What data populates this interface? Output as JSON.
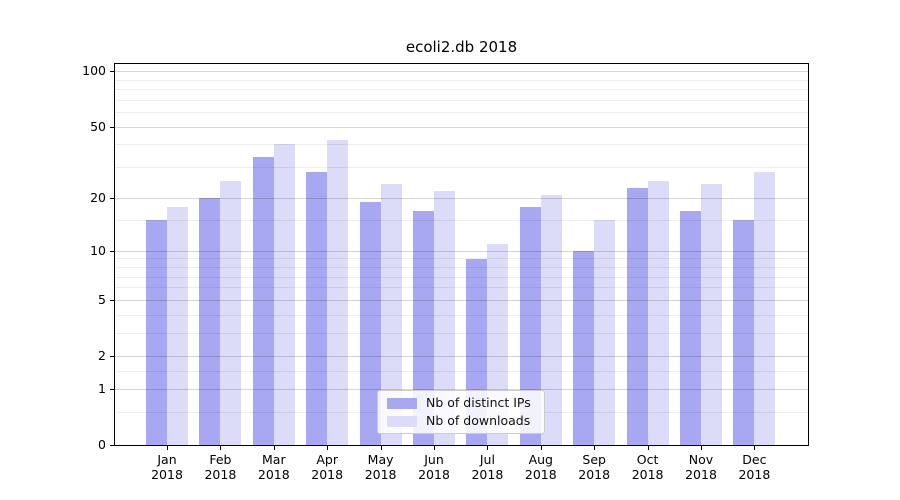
{
  "title": "ecoli2.db 2018",
  "chart_data": {
    "type": "bar",
    "title": "ecoli2.db 2018",
    "categories": [
      "Jan 2018",
      "Feb 2018",
      "Mar 2018",
      "Apr 2018",
      "May 2018",
      "Jun 2018",
      "Jul 2018",
      "Aug 2018",
      "Sep 2018",
      "Oct 2018",
      "Nov 2018",
      "Dec 2018"
    ],
    "category_months": [
      "Jan",
      "Feb",
      "Mar",
      "Apr",
      "May",
      "Jun",
      "Jul",
      "Aug",
      "Sep",
      "Oct",
      "Nov",
      "Dec"
    ],
    "category_year": "2018",
    "series": [
      {
        "name": "Nb of distinct IPs",
        "color": "#a7a7f2",
        "values": [
          15,
          20,
          34,
          28,
          19,
          17,
          9,
          18,
          10,
          23,
          17,
          15
        ]
      },
      {
        "name": "Nb of downloads",
        "color": "#dcdcf9",
        "values": [
          18,
          25,
          40,
          42,
          24,
          22,
          11,
          21,
          15,
          25,
          24,
          28
        ]
      }
    ],
    "yscale": "log1p",
    "ylim": [
      0,
      110
    ],
    "y_major_ticks": [
      0,
      1,
      2,
      5,
      10,
      20,
      50,
      100
    ],
    "y_minor_ticks": [
      0.5,
      1.5,
      3,
      4,
      6,
      7,
      8,
      9,
      15,
      30,
      40,
      60,
      70,
      80,
      90
    ],
    "grid": true,
    "legend_position": "lower center",
    "colors": {
      "grid_major": "rgba(0,0,0,0.16)",
      "grid_minor": "rgba(0,0,0,0.07)",
      "spine": "#000000",
      "background": "#ffffff"
    }
  }
}
